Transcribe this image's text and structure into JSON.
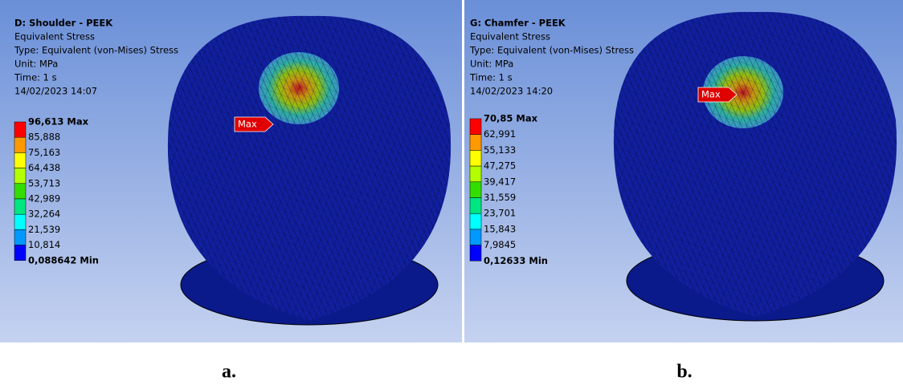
{
  "panels": [
    {
      "header": [
        "D: Shoulder - PEEK",
        "Equivalent Stress",
        "Type: Equivalent (von-Mises) Stress",
        "Unit: MPa",
        "Time: 1 s",
        "14/02/2023 14:07"
      ],
      "legend": [
        "96,613 Max",
        "85,888",
        "75,163",
        "64,438",
        "53,713",
        "42,989",
        "32,264",
        "21,539",
        "10,814",
        "0,088642 Min"
      ],
      "probe": "Max",
      "caption": "a."
    },
    {
      "header": [
        "G: Chamfer - PEEK",
        "Equivalent Stress",
        "Type: Equivalent (von-Mises) Stress",
        "Unit: MPa",
        "Time: 1 s",
        "14/02/2023 14:20"
      ],
      "legend": [
        "70,85 Max",
        "62,991",
        "55,133",
        "47,275",
        "39,417",
        "31,559",
        "23,701",
        "15,843",
        "7,9845",
        "0,12633 Min"
      ],
      "probe": "Max",
      "caption": "b."
    }
  ]
}
